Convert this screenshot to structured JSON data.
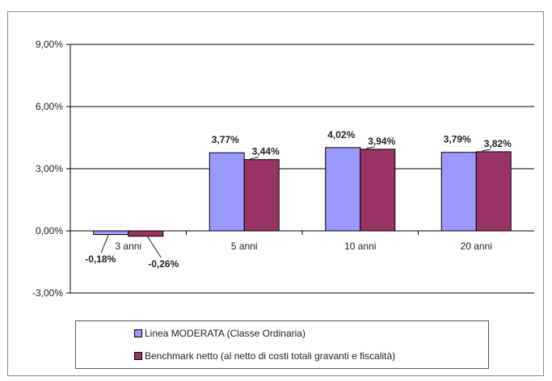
{
  "chart_data": {
    "type": "bar",
    "categories": [
      "3 anni",
      "5 anni",
      "10 anni",
      "20 anni"
    ],
    "series": [
      {
        "name": "Linea MODERATA (Classe Ordinaria)",
        "color": "#9999ff",
        "values": [
          -0.18,
          3.77,
          4.02,
          3.79
        ],
        "labels": [
          "-0,18%",
          "3,77%",
          "4,02%",
          "3,79%"
        ]
      },
      {
        "name": "Benchmark netto (al netto di costi totali gravanti e fiscalità)",
        "color": "#993366",
        "values": [
          -0.26,
          3.44,
          3.94,
          3.82
        ],
        "labels": [
          "-0,26%",
          "3,44%",
          "3,94%",
          "3,82%"
        ]
      }
    ],
    "yticks": [
      9,
      6,
      3,
      0,
      -3
    ],
    "ytick_labels": [
      "9,00%",
      "6,00%",
      "3,00%",
      "0,00%",
      "-3,00%"
    ],
    "ylim": [
      -3,
      9
    ],
    "title": "",
    "xlabel": "",
    "ylabel": "",
    "grid": true,
    "legend_position": "bottom"
  }
}
